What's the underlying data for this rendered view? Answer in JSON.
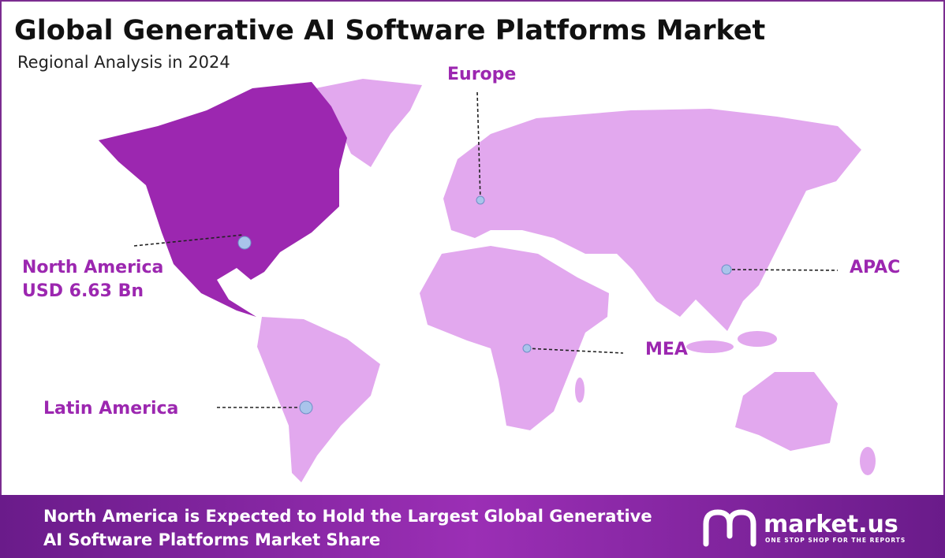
{
  "header": {
    "title": "Global Generative AI Software Platforms Market",
    "subtitle": "Regional Analysis in 2024"
  },
  "regions": [
    {
      "name": "Europe"
    },
    {
      "name": "North America",
      "value_label": "USD 6.63 Bn"
    },
    {
      "name": "APAC"
    },
    {
      "name": "MEA"
    },
    {
      "name": "Latin America"
    }
  ],
  "footer": {
    "lines": [
      "North America is Expected to Hold the Largest Global Generative",
      "AI Software Platforms Market Share"
    ]
  },
  "logo": {
    "name": "market.us",
    "tagline": "ONE STOP SHOP FOR THE REPORTS"
  }
}
